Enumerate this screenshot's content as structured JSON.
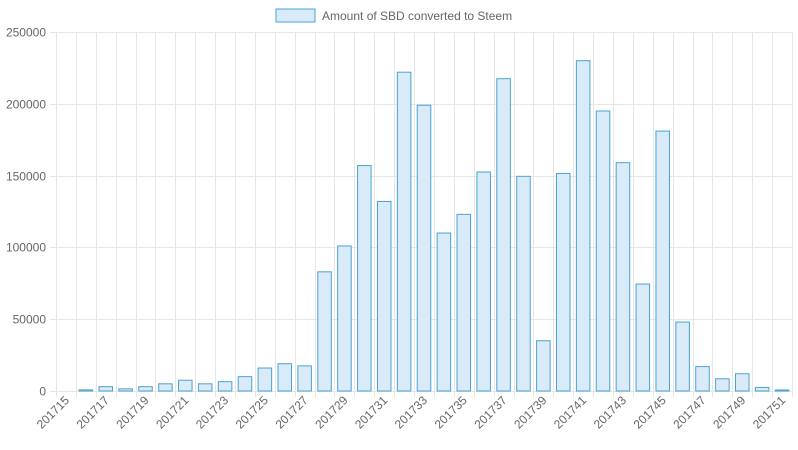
{
  "chart_data": {
    "type": "bar",
    "categories": [
      "201715",
      "201716",
      "201717",
      "201718",
      "201719",
      "201720",
      "201721",
      "201722",
      "201723",
      "201724",
      "201725",
      "201726",
      "201727",
      "201728",
      "201729",
      "201730",
      "201731",
      "201732",
      "201733",
      "201734",
      "201735",
      "201736",
      "201737",
      "201738",
      "201739",
      "201740",
      "201741",
      "201742",
      "201743",
      "201744",
      "201745",
      "201746",
      "201747",
      "201748",
      "201749",
      "201750",
      "201751"
    ],
    "x_tick_labels": [
      "201715",
      "201717",
      "201719",
      "201721",
      "201723",
      "201725",
      "201727",
      "201729",
      "201731",
      "201733",
      "201735",
      "201737",
      "201739",
      "201741",
      "201743",
      "201745",
      "201747",
      "201749",
      "201751"
    ],
    "series": [
      {
        "name": "Amount of SBD converted to Steem",
        "values": [
          0,
          800,
          3000,
          1500,
          3000,
          5000,
          7500,
          5000,
          6500,
          10000,
          16000,
          19000,
          17500,
          83000,
          101000,
          157000,
          132000,
          222000,
          199000,
          110000,
          123000,
          152500,
          217500,
          149500,
          35000,
          151500,
          230000,
          195000,
          159000,
          74500,
          181000,
          48000,
          17000,
          8500,
          12000,
          2500,
          700
        ]
      }
    ],
    "y_ticks": [
      "0",
      "50000",
      "100000",
      "150000",
      "200000",
      "250000"
    ],
    "ylim": [
      0,
      250000
    ],
    "legend": "top-center",
    "grid": true,
    "colors": {
      "bar_fill": "#d9ebf9",
      "bar_stroke": "#4aa3cf",
      "grid": "#e6e6e6",
      "text": "#666666"
    }
  }
}
